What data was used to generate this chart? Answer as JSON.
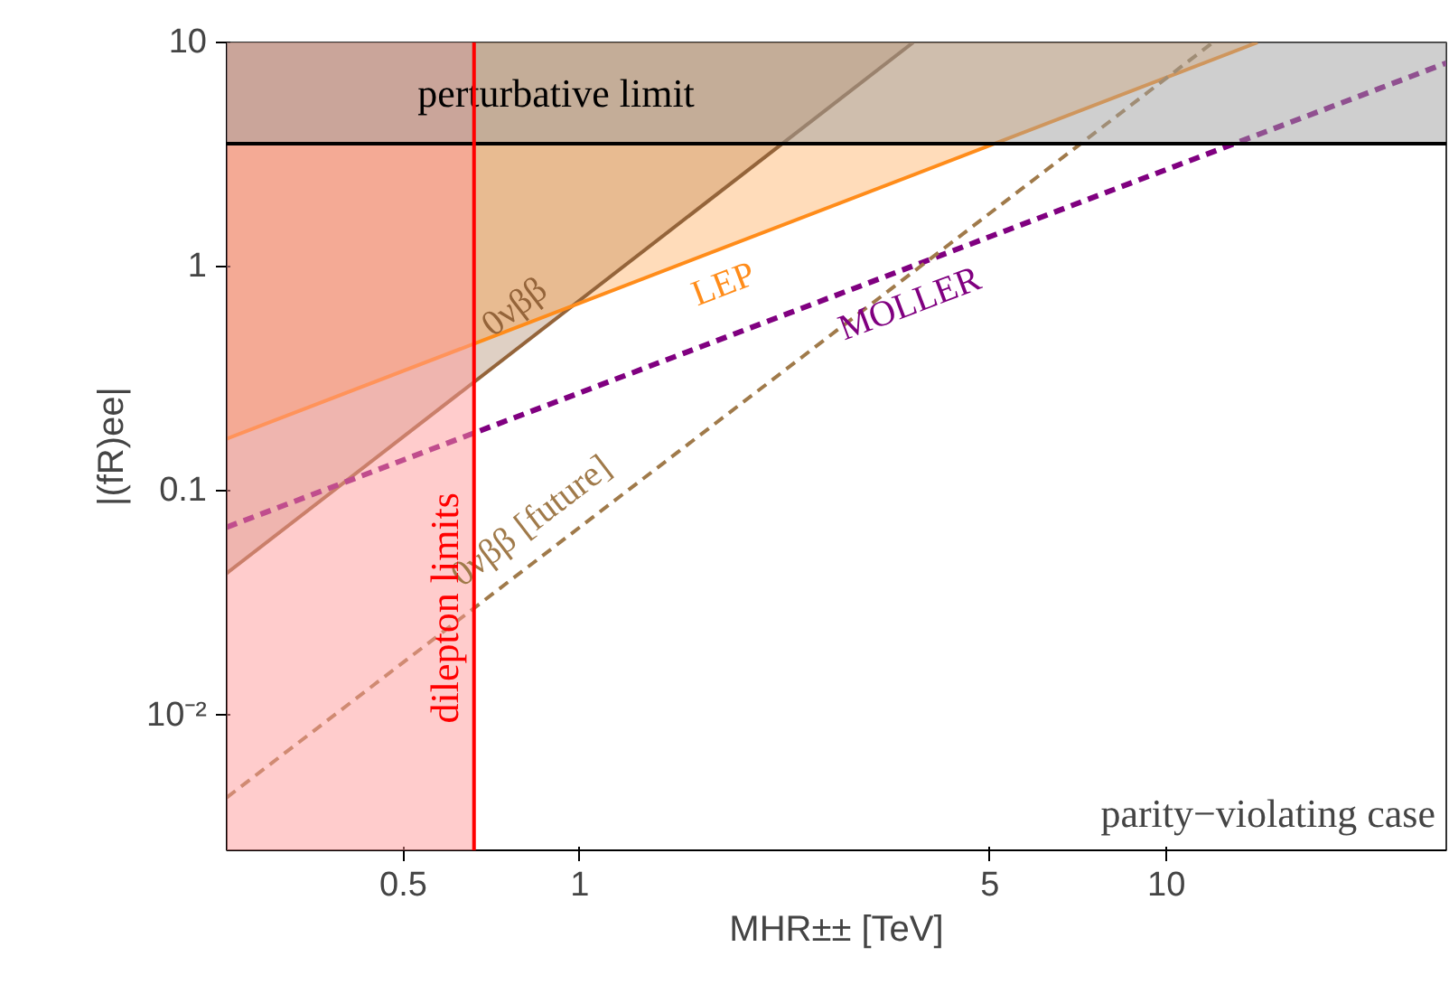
{
  "chart_data": {
    "type": "line",
    "xlabel": "MHR±± [TeV]",
    "ylabel": "|(fR)ee|",
    "log": "xy",
    "xlim": [
      0.25,
      30
    ],
    "ylim": [
      0.0025,
      10
    ],
    "xticks": [
      0.5,
      1,
      5,
      10
    ],
    "yticks": [
      {
        "value": 0.01,
        "label": "10⁻²"
      },
      0.1,
      1,
      10
    ],
    "grid": false,
    "series": [
      {
        "name": "0νββ",
        "color": "#94643a",
        "x": [
          0.25,
          3.7
        ],
        "values": [
          0.043,
          10
        ],
        "lower": [
          0.043,
          10
        ],
        "upper": [
          10,
          10
        ],
        "line_style": "solid"
      },
      {
        "name": "LEP",
        "color": "#ff8c1a",
        "x": [
          0.25,
          14.3
        ],
        "values": [
          0.171,
          10
        ],
        "lower": [
          0.171,
          10
        ],
        "upper": [
          10,
          10
        ],
        "line_style": "solid"
      },
      {
        "name": "MOLLER",
        "color": "#800080",
        "x": [
          0.25,
          30
        ],
        "values": [
          0.069,
          8.1
        ],
        "line_style": "dashed"
      },
      {
        "name": "0νββ [future]",
        "color": "#a07a4a",
        "x": [
          0.25,
          12
        ],
        "values": [
          0.0043,
          10
        ],
        "line_style": "dashed"
      }
    ],
    "bands": [
      {
        "axis": "x",
        "from": 0.25,
        "to": 0.66,
        "color": "#ff9999"
      },
      {
        "axis": "y",
        "from": 3.54,
        "to": 10,
        "color": "#a0a0a0"
      }
    ],
    "ref_lines": [
      {
        "axis": "y",
        "value": 3.54,
        "label": "perturbative limit",
        "color": "#000000",
        "line_style": "solid"
      },
      {
        "axis": "x",
        "value": 0.66,
        "label": "dilepton limits",
        "color": "#ff0000",
        "line_style": "solid"
      }
    ],
    "annotations": [
      "parity−violating case"
    ]
  }
}
